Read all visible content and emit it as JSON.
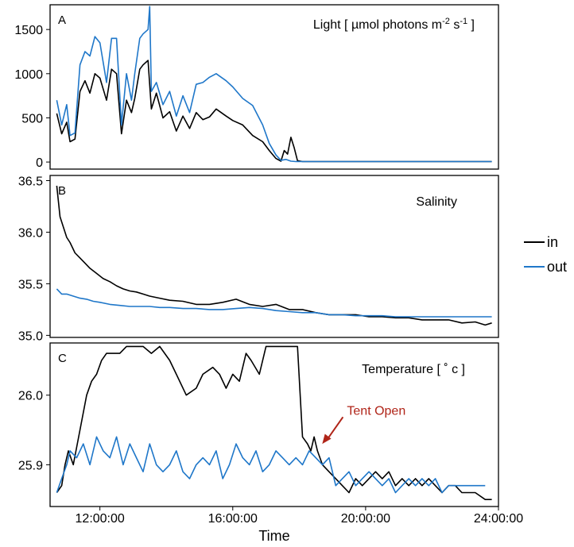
{
  "chart_data": [
    {
      "panel_label": "A",
      "title": "Light [ µmol photons m",
      "title_sup1": "-2",
      "title_mid": " s",
      "title_sup2": "-1",
      "title_end": " ]",
      "type": "line",
      "xlim": [
        10.5,
        24.0
      ],
      "ylim": [
        -80,
        1780
      ],
      "yticks": [
        0,
        500,
        1000,
        1500
      ],
      "series": [
        {
          "name": "in",
          "color": "#000000",
          "x": [
            10.7,
            10.85,
            11.0,
            11.1,
            11.25,
            11.4,
            11.55,
            11.7,
            11.85,
            12.0,
            12.2,
            12.35,
            12.5,
            12.65,
            12.8,
            12.95,
            13.05,
            13.2,
            13.3,
            13.45,
            13.55,
            13.7,
            13.9,
            14.1,
            14.3,
            14.5,
            14.7,
            14.9,
            15.1,
            15.3,
            15.5,
            15.8,
            16.0,
            16.3,
            16.6,
            16.9,
            17.1,
            17.3,
            17.45,
            17.55,
            17.65,
            17.75,
            17.85,
            17.95,
            18.1,
            23.8
          ],
          "y": [
            550,
            320,
            450,
            230,
            260,
            800,
            920,
            780,
            1000,
            950,
            700,
            1050,
            1000,
            320,
            700,
            560,
            720,
            1050,
            1100,
            1150,
            600,
            780,
            500,
            570,
            350,
            520,
            380,
            560,
            480,
            510,
            600,
            520,
            470,
            420,
            300,
            230,
            130,
            40,
            10,
            130,
            90,
            280,
            160,
            15,
            5,
            5
          ]
        },
        {
          "name": "out",
          "color": "#1f77c9",
          "x": [
            10.7,
            10.85,
            11.0,
            11.1,
            11.25,
            11.4,
            11.55,
            11.7,
            11.85,
            12.0,
            12.2,
            12.35,
            12.5,
            12.65,
            12.8,
            12.95,
            13.05,
            13.2,
            13.3,
            13.45,
            13.5,
            13.55,
            13.7,
            13.9,
            14.1,
            14.3,
            14.5,
            14.7,
            14.9,
            15.1,
            15.3,
            15.5,
            15.8,
            16.0,
            16.3,
            16.6,
            16.9,
            17.1,
            17.3,
            17.45,
            17.6,
            17.75,
            17.9,
            18.1,
            23.8
          ],
          "y": [
            700,
            420,
            650,
            300,
            330,
            1100,
            1250,
            1200,
            1420,
            1350,
            900,
            1400,
            1400,
            420,
            1000,
            700,
            1000,
            1400,
            1450,
            1500,
            1760,
            800,
            900,
            650,
            800,
            520,
            750,
            560,
            880,
            900,
            960,
            1000,
            920,
            850,
            720,
            640,
            420,
            210,
            80,
            20,
            30,
            10,
            5,
            5,
            5
          ]
        }
      ]
    },
    {
      "panel_label": "B",
      "title": "Salinity",
      "type": "line",
      "xlim": [
        10.5,
        24.0
      ],
      "ylim": [
        34.98,
        36.55
      ],
      "yticks": [
        35.0,
        35.5,
        36.0,
        36.5
      ],
      "ytick_labels": [
        "35.0",
        "35.5",
        "36.0",
        "36.5"
      ],
      "series": [
        {
          "name": "in",
          "color": "#000000",
          "x": [
            10.7,
            10.8,
            10.9,
            11.0,
            11.1,
            11.25,
            11.4,
            11.55,
            11.7,
            11.9,
            12.1,
            12.3,
            12.5,
            12.7,
            12.9,
            13.1,
            13.3,
            13.5,
            13.8,
            14.1,
            14.5,
            14.9,
            15.3,
            15.7,
            16.1,
            16.5,
            16.9,
            17.3,
            17.7,
            18.1,
            18.5,
            18.9,
            19.3,
            19.7,
            20.1,
            20.5,
            20.9,
            21.3,
            21.7,
            22.1,
            22.5,
            22.9,
            23.3,
            23.6,
            23.8
          ],
          "y": [
            36.45,
            36.15,
            36.05,
            35.95,
            35.9,
            35.8,
            35.75,
            35.7,
            35.65,
            35.6,
            35.55,
            35.52,
            35.48,
            35.45,
            35.43,
            35.42,
            35.4,
            35.38,
            35.36,
            35.34,
            35.33,
            35.3,
            35.3,
            35.32,
            35.35,
            35.3,
            35.28,
            35.3,
            35.25,
            35.25,
            35.22,
            35.2,
            35.2,
            35.2,
            35.18,
            35.18,
            35.17,
            35.17,
            35.15,
            35.15,
            35.15,
            35.12,
            35.13,
            35.1,
            35.12
          ]
        },
        {
          "name": "out",
          "color": "#1f77c9",
          "x": [
            10.7,
            10.85,
            11.0,
            11.2,
            11.4,
            11.6,
            11.8,
            12.0,
            12.3,
            12.6,
            12.9,
            13.2,
            13.5,
            13.8,
            14.1,
            14.5,
            14.9,
            15.3,
            15.7,
            16.1,
            16.5,
            16.9,
            17.3,
            17.7,
            18.1,
            18.5,
            18.9,
            19.3,
            19.7,
            20.1,
            20.5,
            20.9,
            21.3,
            21.7,
            22.1,
            22.5,
            22.9,
            23.3,
            23.6,
            23.8
          ],
          "y": [
            35.45,
            35.4,
            35.4,
            35.38,
            35.36,
            35.35,
            35.33,
            35.32,
            35.3,
            35.29,
            35.28,
            35.28,
            35.28,
            35.27,
            35.27,
            35.26,
            35.26,
            35.25,
            35.25,
            35.26,
            35.27,
            35.26,
            35.24,
            35.23,
            35.22,
            35.22,
            35.2,
            35.2,
            35.19,
            35.19,
            35.19,
            35.18,
            35.18,
            35.18,
            35.18,
            35.18,
            35.18,
            35.18,
            35.18,
            35.18
          ]
        }
      ]
    },
    {
      "panel_label": "C",
      "title": "Temperature [ ˚ c ]",
      "annotation": "Tent Open",
      "annotation_color": "#b02418",
      "annotation_xy": [
        18.6,
        25.98
      ],
      "annotation_target": [
        18.55,
        25.93
      ],
      "type": "line",
      "xlim": [
        10.5,
        24.0
      ],
      "ylim": [
        25.84,
        26.075
      ],
      "yticks": [
        25.9,
        26.0
      ],
      "ytick_labels": [
        "25.9",
        "26.0"
      ],
      "xticks": [
        12,
        16,
        20,
        24
      ],
      "xtick_labels": [
        "12:00:00",
        "16:00:00",
        "20:00:00",
        "24:00:00"
      ],
      "xlabel": "Time",
      "series": [
        {
          "name": "in",
          "color": "#000000",
          "x": [
            10.7,
            10.85,
            10.95,
            11.05,
            11.2,
            11.4,
            11.6,
            11.75,
            11.9,
            12.05,
            12.2,
            12.4,
            12.6,
            12.8,
            12.95,
            13.1,
            13.3,
            13.55,
            13.8,
            14.1,
            14.3,
            14.6,
            14.9,
            15.1,
            15.4,
            15.6,
            15.8,
            16.0,
            16.2,
            16.4,
            16.55,
            16.8,
            17.0,
            17.2,
            17.5,
            17.8,
            17.95,
            18.1,
            18.25,
            18.35,
            18.45,
            18.55,
            18.7,
            18.9,
            19.1,
            19.3,
            19.5,
            19.7,
            19.9,
            20.1,
            20.3,
            20.5,
            20.7,
            20.9,
            21.1,
            21.3,
            21.5,
            21.7,
            21.9,
            22.1,
            22.3,
            22.5,
            22.7,
            22.9,
            23.1,
            23.3,
            23.6,
            23.8
          ],
          "y": [
            25.86,
            25.87,
            25.9,
            25.92,
            25.9,
            25.95,
            26.0,
            26.02,
            26.03,
            26.05,
            26.06,
            26.06,
            26.06,
            26.07,
            26.07,
            26.07,
            26.07,
            26.06,
            26.07,
            26.05,
            26.03,
            26.0,
            26.01,
            26.03,
            26.04,
            26.03,
            26.01,
            26.03,
            26.02,
            26.06,
            26.05,
            26.03,
            26.07,
            26.07,
            26.07,
            26.07,
            26.07,
            25.94,
            25.93,
            25.92,
            25.94,
            25.92,
            25.9,
            25.89,
            25.88,
            25.87,
            25.86,
            25.88,
            25.87,
            25.88,
            25.89,
            25.88,
            25.89,
            25.87,
            25.88,
            25.87,
            25.88,
            25.87,
            25.88,
            25.87,
            25.86,
            25.87,
            25.87,
            25.86,
            25.86,
            25.86,
            25.85,
            25.85
          ]
        },
        {
          "name": "out",
          "color": "#1f77c9",
          "x": [
            10.7,
            10.85,
            11.0,
            11.1,
            11.3,
            11.5,
            11.7,
            11.9,
            12.1,
            12.3,
            12.5,
            12.7,
            12.9,
            13.1,
            13.3,
            13.5,
            13.7,
            13.9,
            14.1,
            14.3,
            14.5,
            14.7,
            14.9,
            15.1,
            15.3,
            15.5,
            15.7,
            15.9,
            16.1,
            16.3,
            16.5,
            16.7,
            16.9,
            17.1,
            17.3,
            17.5,
            17.7,
            17.9,
            18.1,
            18.3,
            18.5,
            18.7,
            18.9,
            19.1,
            19.3,
            19.5,
            19.7,
            19.9,
            20.1,
            20.3,
            20.5,
            20.7,
            20.9,
            21.1,
            21.3,
            21.5,
            21.7,
            21.9,
            22.1,
            22.3,
            22.5,
            22.7,
            22.9,
            23.1,
            23.3,
            23.6
          ],
          "y": [
            25.86,
            25.88,
            25.9,
            25.92,
            25.91,
            25.93,
            25.9,
            25.94,
            25.92,
            25.91,
            25.94,
            25.9,
            25.93,
            25.91,
            25.89,
            25.93,
            25.9,
            25.89,
            25.9,
            25.92,
            25.89,
            25.88,
            25.9,
            25.91,
            25.9,
            25.92,
            25.88,
            25.9,
            25.93,
            25.91,
            25.9,
            25.92,
            25.89,
            25.9,
            25.92,
            25.91,
            25.9,
            25.91,
            25.9,
            25.92,
            25.91,
            25.9,
            25.91,
            25.87,
            25.88,
            25.89,
            25.87,
            25.88,
            25.89,
            25.88,
            25.87,
            25.88,
            25.86,
            25.87,
            25.88,
            25.87,
            25.88,
            25.87,
            25.88,
            25.86,
            25.87,
            25.87,
            25.87,
            25.87,
            25.87,
            25.87
          ]
        }
      ]
    }
  ],
  "legend": {
    "placement": "right",
    "items": [
      {
        "label": "in",
        "color": "#000000"
      },
      {
        "label": "out",
        "color": "#1f77c9"
      }
    ]
  }
}
